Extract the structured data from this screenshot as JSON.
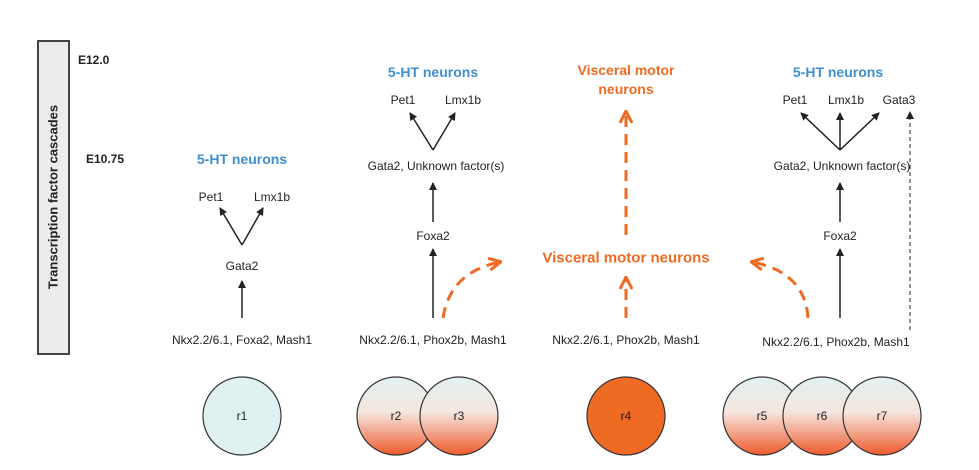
{
  "side_label": "Transcription factor cascades",
  "stages": {
    "e12": "E12.0",
    "e1075": "E10.75"
  },
  "r1_group": {
    "title": "5-HT neurons",
    "pet1": "Pet1",
    "lmx1b": "Lmx1b",
    "gata2": "Gata2",
    "base": "Nkx2.2/6.1, Foxa2, Mash1"
  },
  "r23_group": {
    "title": "5-HT neurons",
    "pet1": "Pet1",
    "lmx1b": "Lmx1b",
    "gata2": "Gata2, Unknown  factor(s)",
    "foxa2": "Foxa2",
    "base": "Nkx2.2/6.1, Phox2b, Mash1"
  },
  "r4_group": {
    "title": "Visceral motor neurons",
    "mid": "Visceral  motor  neurons",
    "base": "Nkx2.2/6.1, Phox2b, Mash1"
  },
  "r567_group": {
    "title": "5-HT neurons",
    "pet1": "Pet1",
    "lmx1b": "Lmx1b",
    "gata3": "Gata3",
    "gata2": "Gata2, Unknown  factor(s)",
    "foxa2": "Foxa2",
    "base": "Nkx2.2/6.1, Phox2b, Mash1"
  },
  "rhombomeres": [
    "r1",
    "r2",
    "r3",
    "r4",
    "r5",
    "r6",
    "r7"
  ],
  "colors": {
    "serotonergic_blue": "#3f8fd0",
    "visceral_orange": "#ef6a22",
    "circle_pale": "#e0f1f1"
  }
}
